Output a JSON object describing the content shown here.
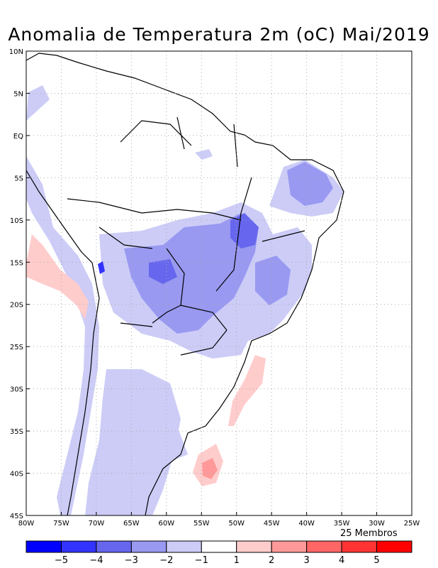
{
  "title": "Anomalia de Temperatura 2m (oC) Mai/2019",
  "members_label": "25 Membros",
  "lat_ticks": [
    "10N",
    "5N",
    "EQ",
    "5S",
    "10S",
    "15S",
    "20S",
    "25S",
    "30S",
    "35S",
    "40S",
    "45S"
  ],
  "lon_ticks": [
    "80W",
    "75W",
    "70W",
    "65W",
    "60W",
    "55W",
    "50W",
    "45W",
    "40W",
    "35W",
    "30W",
    "25W"
  ],
  "colorbar": {
    "labels": [
      "-5",
      "-4",
      "-3",
      "-2",
      "-1",
      "1",
      "2",
      "3",
      "4",
      "5"
    ],
    "colors": [
      "#0000ff",
      "#3333ff",
      "#6666ee",
      "#9999f2",
      "#ccccf7",
      "#ffffff",
      "#ffcccc",
      "#ff9999",
      "#ff6666",
      "#ff3333",
      "#ff0000"
    ]
  },
  "colors": {
    "frame": "#000000",
    "grid": "#aaaaaa",
    "coast": "#000000"
  }
}
